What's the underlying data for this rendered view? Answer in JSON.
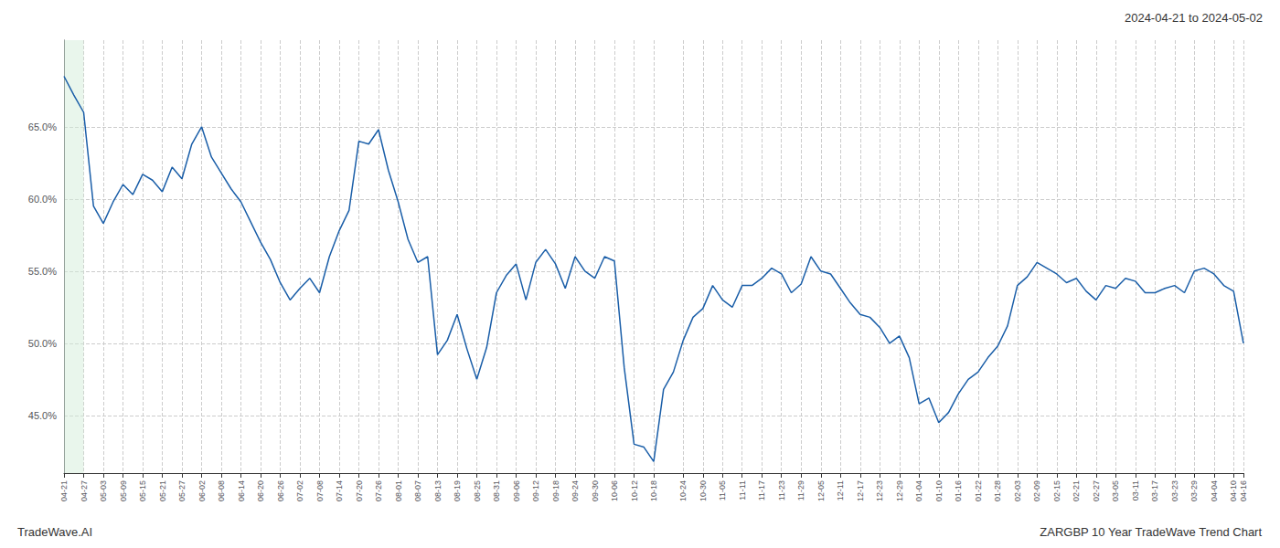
{
  "chart_data": {
    "type": "line",
    "title": "2024-04-21 to 2024-05-02",
    "annotations": [
      "TradeWave.AI",
      "ZARGBP 10 Year TradeWave Trend Chart"
    ],
    "color": "#1a5ea8",
    "grid": true,
    "highlight": {
      "from": "04-21",
      "to": "04-27",
      "color": "#d4edda"
    },
    "ylim": [
      0.41,
      0.71
    ],
    "yticks": [
      {
        "value": 0.45,
        "label": "45.0%"
      },
      {
        "value": 0.5,
        "label": "50.0%"
      },
      {
        "value": 0.55,
        "label": "55.0%"
      },
      {
        "value": 0.6,
        "label": "60.0%"
      },
      {
        "value": 0.65,
        "label": "65.0%"
      }
    ],
    "categories": [
      "04-21",
      null,
      "04-27",
      null,
      "05-03",
      null,
      "05-09",
      null,
      "05-15",
      null,
      "05-21",
      null,
      "05-27",
      null,
      "06-02",
      null,
      "06-08",
      null,
      "06-14",
      null,
      "06-20",
      null,
      "06-26",
      null,
      "07-02",
      null,
      "07-08",
      null,
      "07-14",
      null,
      "07-20",
      null,
      "07-26",
      null,
      "08-01",
      null,
      "08-07",
      null,
      "08-13",
      null,
      "08-19",
      null,
      "08-25",
      null,
      "08-31",
      null,
      "09-06",
      null,
      "09-12",
      null,
      "09-18",
      null,
      "09-24",
      null,
      "09-30",
      null,
      "10-06",
      null,
      "10-12",
      null,
      "10-18",
      null,
      null,
      "10-24",
      null,
      "10-30",
      null,
      "11-05",
      null,
      "11-11",
      null,
      "11-17",
      null,
      "11-23",
      null,
      "11-29",
      null,
      "12-05",
      null,
      "12-11",
      null,
      "12-17",
      null,
      "12-23",
      null,
      "12-29",
      null,
      "01-04",
      null,
      "01-10",
      null,
      "01-16",
      null,
      "01-22",
      null,
      "01-28",
      null,
      "02-03",
      null,
      "02-09",
      null,
      "02-15",
      null,
      "02-21",
      null,
      "02-27",
      null,
      "03-05",
      null,
      "03-11",
      null,
      "03-17",
      null,
      "03-23",
      null,
      "03-29",
      null,
      "04-04",
      null,
      "04-10",
      "04-16"
    ],
    "values": [
      0.685,
      0.672,
      0.66,
      0.595,
      0.583,
      0.598,
      0.61,
      0.603,
      0.617,
      0.613,
      0.605,
      0.622,
      0.614,
      0.638,
      0.65,
      0.629,
      0.618,
      0.607,
      0.598,
      0.584,
      0.57,
      0.558,
      0.542,
      0.53,
      0.538,
      0.545,
      0.535,
      0.56,
      0.578,
      0.592,
      0.64,
      0.638,
      0.648,
      0.62,
      0.598,
      0.572,
      0.556,
      0.56,
      0.492,
      0.502,
      0.52,
      0.496,
      0.475,
      0.497,
      0.535,
      0.547,
      0.555,
      0.53,
      0.556,
      0.565,
      0.555,
      0.538,
      0.56,
      0.55,
      0.545,
      0.56,
      0.557,
      0.483,
      0.43,
      0.428,
      0.418,
      0.468,
      0.48,
      0.502,
      0.518,
      0.524,
      0.54,
      0.53,
      0.525,
      0.54,
      0.54,
      0.545,
      0.552,
      0.548,
      0.535,
      0.541,
      0.56,
      0.55,
      0.548,
      0.538,
      0.528,
      0.52,
      0.518,
      0.511,
      0.5,
      0.505,
      0.49,
      0.458,
      0.462,
      0.445,
      0.452,
      0.465,
      0.475,
      0.48,
      0.49,
      0.498,
      0.512,
      0.54,
      0.546,
      0.556,
      0.552,
      0.548,
      0.542,
      0.545,
      0.536,
      0.53,
      0.54,
      0.538,
      0.545,
      0.543,
      0.535,
      0.535,
      0.538,
      0.54,
      0.535,
      0.55,
      0.552,
      0.548,
      0.54,
      0.536,
      0.5
    ]
  }
}
